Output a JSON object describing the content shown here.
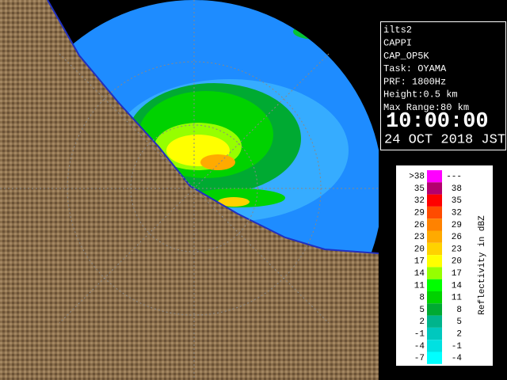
{
  "info": {
    "lines": [
      "ilts2",
      "CAPPI",
      "CAP_OP5K",
      "Task: OYAMA",
      "PRF: 1800Hz",
      "Height:0.5 km",
      "Max Range:80 km"
    ],
    "time": "10:00:00",
    "date": "24 OCT 2018 JST"
  },
  "legend": {
    "title": "Reflectivity in dBZ",
    "rows": [
      {
        "low": ">38",
        "high": "---",
        "color": "#ff00ff"
      },
      {
        "low": "35",
        "high": "38",
        "color": "#b4006e"
      },
      {
        "low": "32",
        "high": "35",
        "color": "#ff0000"
      },
      {
        "low": "29",
        "high": "32",
        "color": "#ff4b00"
      },
      {
        "low": "26",
        "high": "29",
        "color": "#ff8200"
      },
      {
        "low": "23",
        "high": "26",
        "color": "#ffaa00"
      },
      {
        "low": "20",
        "high": "23",
        "color": "#ffd200"
      },
      {
        "low": "17",
        "high": "20",
        "color": "#ffff00"
      },
      {
        "low": "14",
        "high": "17",
        "color": "#96ff00"
      },
      {
        "low": "11",
        "high": "14",
        "color": "#00ff00"
      },
      {
        "low": "8",
        "high": "11",
        "color": "#00d200"
      },
      {
        "low": "5",
        "high": "8",
        "color": "#00aa32"
      },
      {
        "low": "2",
        "high": "5",
        "color": "#00b48c"
      },
      {
        "low": "-1",
        "high": "2",
        "color": "#00c8be"
      },
      {
        "low": "-4",
        "high": "-1",
        "color": "#00e1e1"
      },
      {
        "low": "-7",
        "high": "-4",
        "color": "#00ffff"
      }
    ]
  }
}
